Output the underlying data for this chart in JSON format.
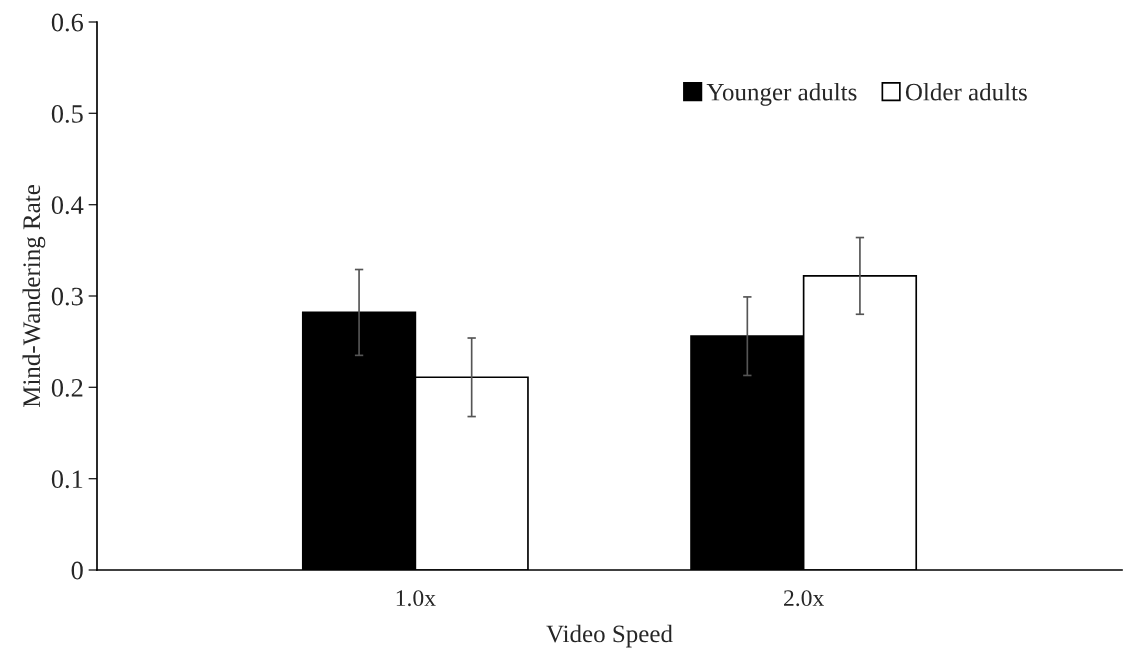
{
  "chart_data": {
    "type": "bar",
    "xlabel": "Video Speed",
    "ylabel": "Mind-Wandering Rate",
    "categories": [
      "1.0x",
      "2.0x"
    ],
    "series": [
      {
        "name": "Younger adults",
        "color": "#000000",
        "values": [
          0.282,
          0.256
        ],
        "errors": [
          0.047,
          0.043
        ]
      },
      {
        "name": "Older adults",
        "color": "#ffffff",
        "values": [
          0.211,
          0.322
        ],
        "errors": [
          0.043,
          0.042
        ]
      }
    ],
    "ylim": [
      0,
      0.6
    ],
    "yticks": [
      0,
      0.1,
      0.2,
      0.3,
      0.4,
      0.5,
      0.6
    ],
    "grid": false,
    "legend": "top right"
  }
}
